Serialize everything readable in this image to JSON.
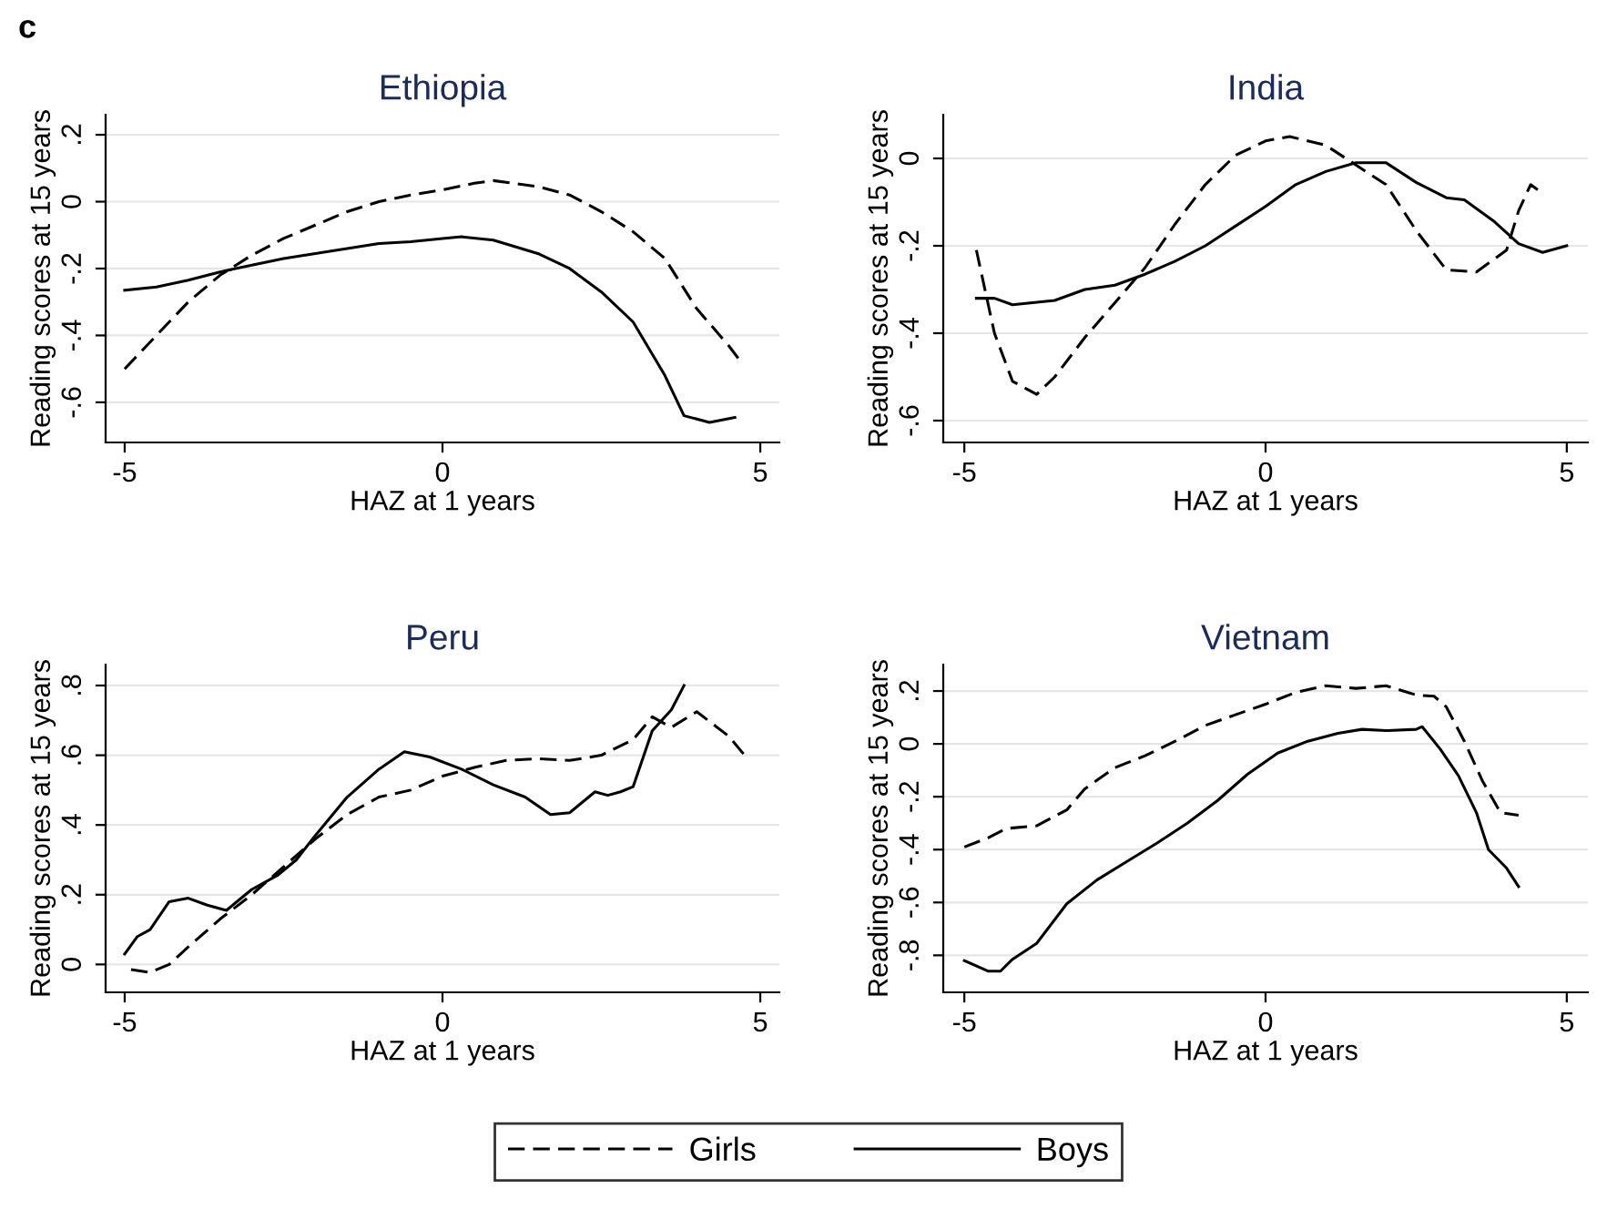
{
  "chart_data": [
    {
      "type": "line",
      "title": "Ethiopia",
      "xlabel": "HAZ at 1 years",
      "ylabel": "Reading scores at 15 years",
      "annotations": [
        "c"
      ],
      "xlim": [
        -5.3,
        5.3
      ],
      "xticks": [
        -5,
        0,
        5
      ],
      "ylim": [
        -0.72,
        0.26
      ],
      "yticks": [
        {
          "value": -0.6,
          "label": "-.6"
        },
        {
          "value": -0.4,
          "label": "-.4"
        },
        {
          "value": -0.2,
          "label": "-.2"
        },
        0,
        {
          "value": 0.2,
          "label": ".2"
        }
      ],
      "grid": "y",
      "legend": "bottom",
      "series": [
        {
          "name": "Girls",
          "color": "#000000",
          "line_style": "dashed",
          "x": [
            -5,
            -4.5,
            -4,
            -3.5,
            -3,
            -2.5,
            -2,
            -1.5,
            -1,
            -0.5,
            0,
            0.5,
            0.8,
            1.5,
            2,
            2.5,
            3,
            3.5,
            4,
            4.5,
            4.7
          ],
          "values": [
            -0.5,
            -0.4,
            -0.3,
            -0.22,
            -0.16,
            -0.11,
            -0.07,
            -0.03,
            0.0,
            0.02,
            0.035,
            0.055,
            0.063,
            0.045,
            0.02,
            -0.03,
            -0.09,
            -0.17,
            -0.32,
            -0.43,
            -0.48
          ]
        },
        {
          "name": "Boys",
          "color": "#000000",
          "line_style": "solid",
          "x": [
            -5,
            -4.5,
            -4,
            -3.5,
            -3,
            -2.5,
            -2,
            -1.5,
            -1,
            -0.5,
            0,
            0.3,
            0.8,
            1.5,
            2,
            2.5,
            3,
            3.5,
            3.8,
            4.2,
            4.6
          ],
          "values": [
            -0.265,
            -0.255,
            -0.235,
            -0.21,
            -0.19,
            -0.17,
            -0.155,
            -0.14,
            -0.125,
            -0.12,
            -0.11,
            -0.105,
            -0.115,
            -0.155,
            -0.2,
            -0.27,
            -0.36,
            -0.52,
            -0.64,
            -0.66,
            -0.645
          ]
        }
      ]
    },
    {
      "type": "line",
      "title": "India",
      "xlabel": "HAZ at 1 years",
      "ylabel": "Reading scores at 15 years",
      "xlim": [
        -5.35,
        5.35
      ],
      "xticks": [
        -5,
        0,
        5
      ],
      "ylim": [
        -0.65,
        0.1
      ],
      "yticks": [
        {
          "value": -0.6,
          "label": "-.6"
        },
        {
          "value": -0.4,
          "label": "-.4"
        },
        {
          "value": -0.2,
          "label": "-.2"
        },
        0
      ],
      "grid": "y",
      "series": [
        {
          "color": "#000000",
          "line_style": "dashed",
          "x": [
            -4.8,
            -4.5,
            -4.2,
            -3.8,
            -3.5,
            -3,
            -2.5,
            -2,
            -1.5,
            -1,
            -0.5,
            0,
            0.4,
            1,
            1.5,
            2,
            2.5,
            3,
            3.5,
            4,
            4.2,
            4.4,
            4.6
          ],
          "values": [
            -0.21,
            -0.4,
            -0.51,
            -0.54,
            -0.5,
            -0.41,
            -0.33,
            -0.25,
            -0.15,
            -0.06,
            0.007,
            0.04,
            0.05,
            0.03,
            -0.015,
            -0.06,
            -0.165,
            -0.255,
            -0.26,
            -0.21,
            -0.12,
            -0.06,
            -0.08
          ]
        },
        {
          "color": "#000000",
          "line_style": "solid",
          "x": [
            -4.8,
            -4.5,
            -4.2,
            -3.5,
            -3,
            -2.5,
            -2,
            -1.5,
            -1,
            -0.5,
            0,
            0.5,
            1,
            1.5,
            2,
            2.5,
            3,
            3.3,
            3.8,
            4.2,
            4.6,
            5
          ],
          "values": [
            -0.32,
            -0.32,
            -0.335,
            -0.325,
            -0.3,
            -0.29,
            -0.265,
            -0.235,
            -0.2,
            -0.155,
            -0.11,
            -0.06,
            -0.03,
            -0.01,
            -0.01,
            -0.055,
            -0.09,
            -0.095,
            -0.145,
            -0.195,
            -0.215,
            -0.2
          ]
        }
      ]
    },
    {
      "type": "line",
      "title": "Peru",
      "xlabel": "HAZ at 1 years",
      "ylabel": "Reading scores at 15 years",
      "xlim": [
        -5.3,
        5.3
      ],
      "xticks": [
        -5,
        0,
        5
      ],
      "ylim": [
        -0.08,
        0.86
      ],
      "yticks": [
        0,
        {
          "value": 0.2,
          "label": ".2"
        },
        {
          "value": 0.4,
          "label": ".4"
        },
        {
          "value": 0.6,
          "label": ".6"
        },
        {
          "value": 0.8,
          "label": ".8"
        }
      ],
      "grid": "y",
      "series": [
        {
          "color": "#000000",
          "line_style": "dashed",
          "x": [
            -4.9,
            -4.6,
            -4.3,
            -4,
            -3.5,
            -3,
            -2.5,
            -2,
            -1.5,
            -1,
            -0.5,
            0,
            0.5,
            1,
            1.5,
            2,
            2.5,
            3,
            3.3,
            3.6,
            4,
            4.5,
            4.8
          ],
          "values": [
            -0.015,
            -0.023,
            0.0,
            0.05,
            0.13,
            0.2,
            0.28,
            0.36,
            0.43,
            0.48,
            0.5,
            0.54,
            0.565,
            0.585,
            0.59,
            0.585,
            0.6,
            0.645,
            0.71,
            0.68,
            0.725,
            0.655,
            0.59
          ]
        },
        {
          "color": "#000000",
          "line_style": "solid",
          "x": [
            -5,
            -4.8,
            -4.6,
            -4.3,
            -4,
            -3.7,
            -3.4,
            -3,
            -2.6,
            -2.3,
            -2,
            -1.5,
            -1,
            -0.6,
            -0.2,
            0.3,
            0.8,
            1.3,
            1.7,
            2,
            2.4,
            2.6,
            2.8,
            3,
            3.3,
            3.6,
            3.8
          ],
          "values": [
            0.03,
            0.08,
            0.1,
            0.18,
            0.19,
            0.17,
            0.155,
            0.215,
            0.255,
            0.3,
            0.37,
            0.48,
            0.56,
            0.61,
            0.595,
            0.56,
            0.515,
            0.48,
            0.43,
            0.435,
            0.495,
            0.485,
            0.495,
            0.51,
            0.67,
            0.73,
            0.8
          ]
        }
      ]
    },
    {
      "type": "line",
      "title": "Vietnam",
      "xlabel": "HAZ at 1 years",
      "ylabel": "Reading scores at 15 years",
      "xlim": [
        -5.35,
        5.35
      ],
      "xticks": [
        -5,
        0,
        5
      ],
      "ylim": [
        -0.94,
        0.3
      ],
      "yticks": [
        {
          "value": -0.8,
          "label": "-.8"
        },
        {
          "value": -0.6,
          "label": "-.6"
        },
        {
          "value": -0.4,
          "label": "-.4"
        },
        {
          "value": -0.2,
          "label": "-.2"
        },
        0,
        {
          "value": 0.2,
          "label": ".2"
        }
      ],
      "grid": "y",
      "series": [
        {
          "color": "#000000",
          "line_style": "dashed",
          "x": [
            -5,
            -4.6,
            -4.3,
            -3.8,
            -3.3,
            -3,
            -2.5,
            -2,
            -1.5,
            -1,
            -0.5,
            0,
            0.5,
            1,
            1.5,
            2,
            2.5,
            2.8,
            3,
            3.3,
            3.6,
            3.9,
            4.2
          ],
          "values": [
            -0.39,
            -0.355,
            -0.32,
            -0.31,
            -0.25,
            -0.17,
            -0.09,
            -0.045,
            0.01,
            0.07,
            0.11,
            0.15,
            0.195,
            0.22,
            0.21,
            0.22,
            0.185,
            0.18,
            0.14,
            0.01,
            -0.14,
            -0.26,
            -0.27
          ]
        },
        {
          "color": "#000000",
          "line_style": "solid",
          "x": [
            -5,
            -4.6,
            -4.4,
            -4.2,
            -3.8,
            -3.3,
            -2.8,
            -2.3,
            -1.8,
            -1.3,
            -0.8,
            -0.3,
            0.2,
            0.7,
            1.2,
            1.6,
            2,
            2.5,
            2.6,
            2.9,
            3.2,
            3.5,
            3.7,
            4,
            4.2
          ],
          "values": [
            -0.82,
            -0.86,
            -0.86,
            -0.815,
            -0.755,
            -0.605,
            -0.515,
            -0.445,
            -0.375,
            -0.3,
            -0.215,
            -0.115,
            -0.035,
            0.01,
            0.04,
            0.055,
            0.05,
            0.055,
            0.065,
            -0.02,
            -0.12,
            -0.26,
            -0.4,
            -0.47,
            -0.54
          ]
        }
      ]
    }
  ]
}
